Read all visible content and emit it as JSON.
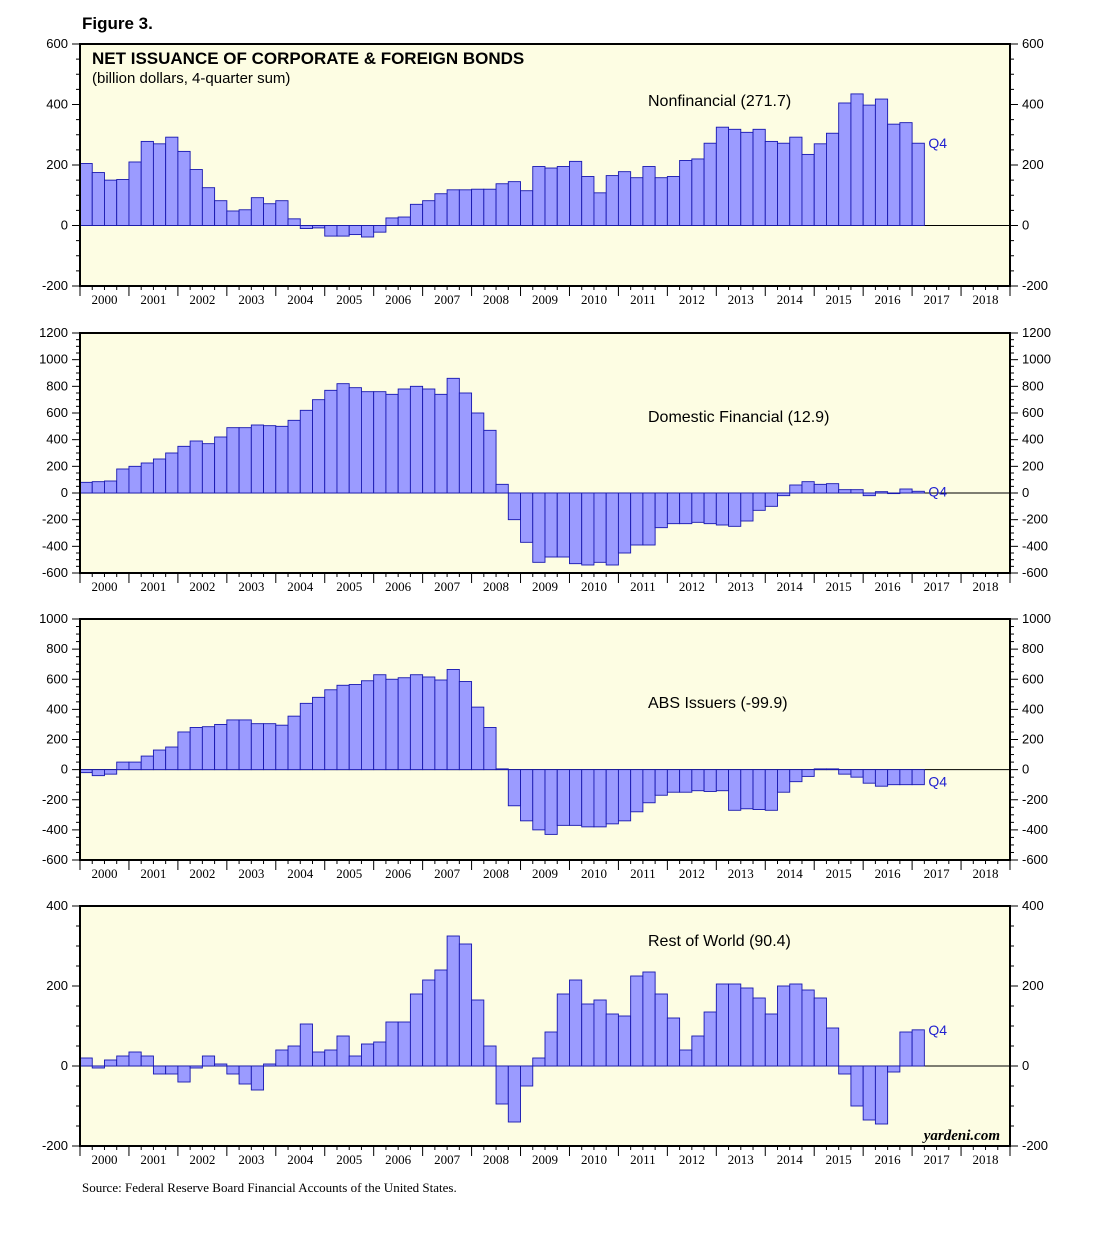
{
  "figure_label": "Figure 3.",
  "source": "Source: Federal Reserve Board Financial Accounts of the United States.",
  "watermark": "yardeni.com",
  "colors": {
    "bar_fill": "#9b9bff",
    "bar_stroke": "#1818b0",
    "panel_bg": "#fdfde3",
    "q4_text": "#1f1fd0"
  },
  "chart_data": [
    {
      "type": "bar",
      "title": "NET ISSUANCE OF CORPORATE & FOREIGN BONDS",
      "subtitle": "(billion dollars, 4-quarter sum)",
      "series_name": "Nonfinancial",
      "label": "Nonfinancial (271.7)",
      "last_label": "Q4",
      "ylim": [
        -200,
        600
      ],
      "yticks": [
        "-200",
        "0",
        "200",
        "400",
        "600"
      ],
      "ytick_values": [
        -200,
        0,
        200,
        400,
        600
      ],
      "years": [
        "2000",
        "2001",
        "2002",
        "2003",
        "2004",
        "2005",
        "2006",
        "2007",
        "2008",
        "2009",
        "2010",
        "2011",
        "2012",
        "2013",
        "2014",
        "2015",
        "2016",
        "2017",
        "2018"
      ],
      "start": "2000Q1",
      "values": [
        205,
        175,
        150,
        152,
        210,
        278,
        270,
        292,
        245,
        185,
        125,
        82,
        48,
        52,
        92,
        72,
        82,
        22,
        -10,
        -8,
        -35,
        -35,
        -30,
        -38,
        -22,
        25,
        28,
        70,
        82,
        105,
        118,
        118,
        120,
        120,
        138,
        145,
        115,
        195,
        190,
        195,
        212,
        162,
        108,
        165,
        178,
        158,
        195,
        158,
        162,
        215,
        220,
        272,
        325,
        318,
        308,
        318,
        278,
        272,
        292,
        235,
        270,
        305,
        405,
        435,
        398,
        418,
        335,
        340,
        272
      ]
    },
    {
      "type": "bar",
      "series_name": "Domestic Financial",
      "label": "Domestic Financial (12.9)",
      "last_label": "Q4",
      "ylim": [
        -600,
        1200
      ],
      "yticks": [
        "-600",
        "-400",
        "-200",
        "0",
        "200",
        "400",
        "600",
        "800",
        "1000",
        "1200"
      ],
      "ytick_values": [
        -600,
        -400,
        -200,
        0,
        200,
        400,
        600,
        800,
        1000,
        1200
      ],
      "years": [
        "2000",
        "2001",
        "2002",
        "2003",
        "2004",
        "2005",
        "2006",
        "2007",
        "2008",
        "2009",
        "2010",
        "2011",
        "2012",
        "2013",
        "2014",
        "2015",
        "2016",
        "2017",
        "2018"
      ],
      "start": "2000Q1",
      "values": [
        80,
        85,
        90,
        180,
        200,
        225,
        255,
        300,
        350,
        390,
        370,
        420,
        490,
        490,
        510,
        505,
        500,
        545,
        620,
        700,
        770,
        820,
        790,
        760,
        760,
        740,
        780,
        800,
        780,
        740,
        860,
        750,
        600,
        470,
        65,
        -200,
        -370,
        -520,
        -480,
        -480,
        -530,
        -540,
        -520,
        -540,
        -450,
        -390,
        -390,
        -260,
        -230,
        -230,
        -220,
        -230,
        -240,
        -250,
        -210,
        -130,
        -100,
        -20,
        60,
        85,
        65,
        70,
        25,
        25,
        -20,
        10,
        0,
        30,
        12.9
      ]
    },
    {
      "type": "bar",
      "series_name": "ABS Issuers",
      "label": "ABS Issuers (-99.9)",
      "last_label": "Q4",
      "ylim": [
        -600,
        1000
      ],
      "yticks": [
        "-600",
        "-400",
        "-200",
        "0",
        "200",
        "400",
        "600",
        "800",
        "1000"
      ],
      "ytick_values": [
        -600,
        -400,
        -200,
        0,
        200,
        400,
        600,
        800,
        1000
      ],
      "years": [
        "2000",
        "2001",
        "2002",
        "2003",
        "2004",
        "2005",
        "2006",
        "2007",
        "2008",
        "2009",
        "2010",
        "2011",
        "2012",
        "2013",
        "2014",
        "2015",
        "2016",
        "2017",
        "2018"
      ],
      "start": "2000Q1",
      "values": [
        -20,
        -40,
        -30,
        50,
        50,
        90,
        130,
        150,
        250,
        280,
        285,
        300,
        330,
        330,
        305,
        305,
        295,
        355,
        440,
        480,
        530,
        560,
        565,
        590,
        630,
        600,
        610,
        630,
        615,
        595,
        665,
        585,
        415,
        280,
        5,
        -240,
        -340,
        -400,
        -430,
        -370,
        -370,
        -380,
        -380,
        -360,
        -340,
        -280,
        -220,
        -170,
        -150,
        -150,
        -140,
        -145,
        -140,
        -270,
        -260,
        -265,
        -270,
        -150,
        -80,
        -45,
        5,
        5,
        -30,
        -50,
        -90,
        -110,
        -100,
        -100,
        -99.9
      ]
    },
    {
      "type": "bar",
      "series_name": "Rest of World",
      "label": "Rest of World (90.4)",
      "last_label": "Q4",
      "ylim": [
        -200,
        400
      ],
      "yticks": [
        "-200",
        "0",
        "200",
        "400"
      ],
      "ytick_values": [
        -200,
        0,
        200,
        400
      ],
      "years": [
        "2000",
        "2001",
        "2002",
        "2003",
        "2004",
        "2005",
        "2006",
        "2007",
        "2008",
        "2009",
        "2010",
        "2011",
        "2012",
        "2013",
        "2014",
        "2015",
        "2016",
        "2017",
        "2018"
      ],
      "start": "2000Q1",
      "values": [
        20,
        -5,
        15,
        25,
        35,
        25,
        -20,
        -20,
        -40,
        -5,
        25,
        5,
        -20,
        -45,
        -60,
        5,
        40,
        50,
        105,
        35,
        40,
        75,
        25,
        55,
        60,
        110,
        110,
        180,
        215,
        240,
        325,
        305,
        165,
        50,
        -95,
        -140,
        -50,
        20,
        85,
        180,
        215,
        155,
        165,
        130,
        125,
        225,
        235,
        180,
        120,
        40,
        75,
        135,
        205,
        205,
        195,
        170,
        130,
        200,
        205,
        190,
        170,
        95,
        -20,
        -100,
        -135,
        -145,
        -15,
        85,
        90.4
      ]
    }
  ]
}
